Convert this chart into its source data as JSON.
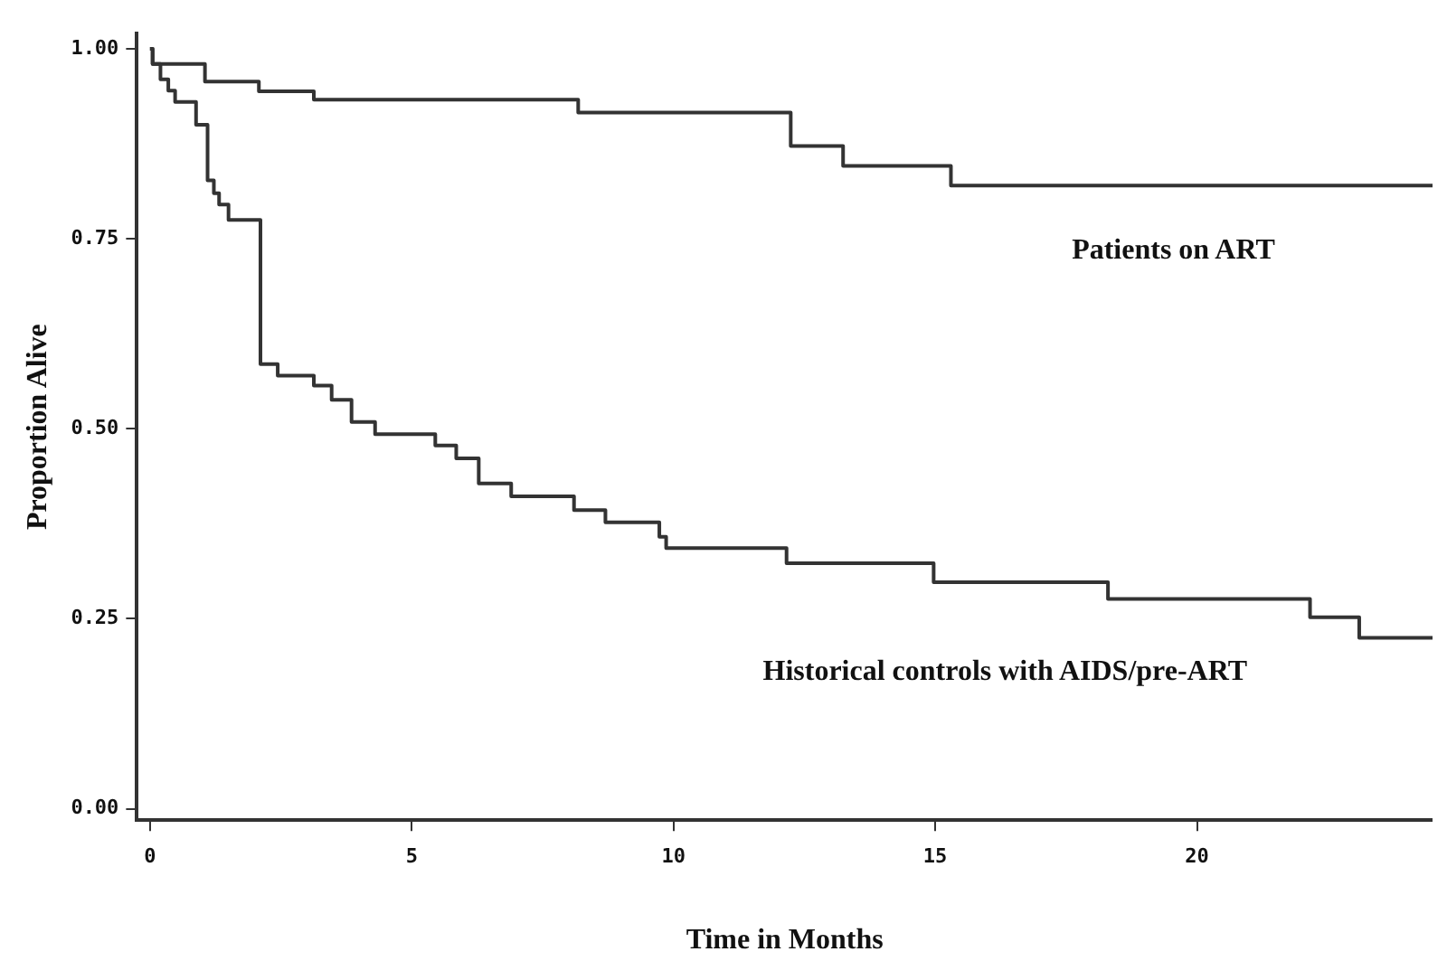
{
  "chart_data": {
    "type": "step",
    "xlabel": "Time in Months",
    "ylabel": "Proportion Alive",
    "xlim": [
      -0.25,
      24.5
    ],
    "ylim": [
      -0.015,
      1.02
    ],
    "xticks": [
      0,
      5,
      10,
      15,
      20
    ],
    "yticks": [
      {
        "value": 0,
        "label": "0.00"
      },
      {
        "value": 0.25,
        "label": "0.25"
      },
      {
        "value": 0.5,
        "label": "0.50"
      },
      {
        "value": 0.75,
        "label": "0.75"
      },
      {
        "value": 1,
        "label": "1.00"
      }
    ],
    "grid": false,
    "legend": false,
    "marker": "none",
    "line_style": "solid",
    "series": [
      {
        "name": "Patients on ART",
        "color": "#333333",
        "x": [
          0,
          0.05,
          1.05,
          2.08,
          3.13,
          8.18,
          12.24,
          13.24,
          15.3,
          24.5
        ],
        "values": [
          1,
          0.98,
          0.957,
          0.944,
          0.933,
          0.916,
          0.872,
          0.846,
          0.82,
          0.82
        ]
      },
      {
        "name": "Historical controls with AIDS/pre-ART",
        "color": "#333333",
        "x": [
          0,
          0.05,
          0.2,
          0.35,
          0.48,
          0.88,
          1.1,
          1.22,
          1.32,
          1.5,
          2.11,
          2.44,
          3.13,
          3.47,
          3.85,
          4.3,
          5.45,
          5.85,
          6.28,
          6.9,
          8.1,
          8.7,
          9.73,
          9.86,
          12.16,
          14.97,
          18.3,
          22.16,
          23.1,
          24.5
        ],
        "values": [
          1,
          0.98,
          0.96,
          0.945,
          0.93,
          0.9,
          0.827,
          0.81,
          0.795,
          0.775,
          0.585,
          0.57,
          0.557,
          0.538,
          0.509,
          0.493,
          0.478,
          0.461,
          0.428,
          0.411,
          0.393,
          0.377,
          0.358,
          0.343,
          0.323,
          0.298,
          0.276,
          0.252,
          0.225,
          0.225
        ]
      }
    ]
  }
}
